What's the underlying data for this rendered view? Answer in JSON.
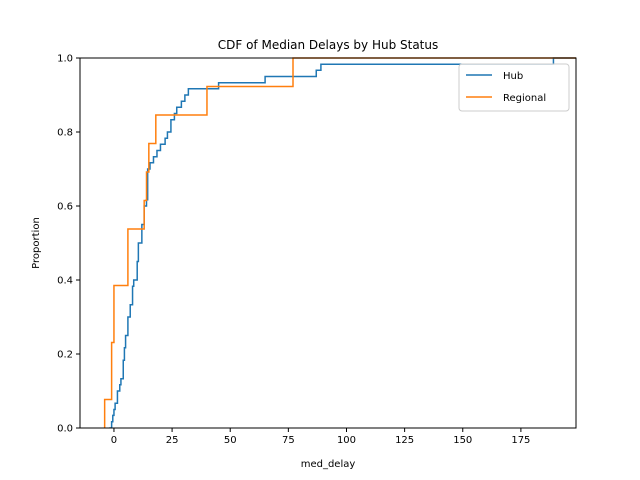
{
  "chart_data": {
    "type": "line",
    "subtype": "ecdf-step",
    "title": "CDF of Median Delays by Hub Status",
    "xlabel": "med_delay",
    "ylabel": "Proportion",
    "xlim": [
      -14.6,
      198.7
    ],
    "ylim": [
      0,
      1
    ],
    "xticks": [
      0,
      25,
      50,
      75,
      100,
      125,
      150,
      175
    ],
    "yticks": [
      0.0,
      0.2,
      0.4,
      0.6,
      0.8,
      1.0
    ],
    "xtick_labels": [
      "0",
      "25",
      "50",
      "75",
      "100",
      "125",
      "150",
      "175"
    ],
    "ytick_labels": [
      "0.0",
      "0.2",
      "0.4",
      "0.6",
      "0.8",
      "1.0"
    ],
    "grid": false,
    "legend_position": "top-right",
    "series": [
      {
        "name": "Hub",
        "color": "#1f77b4",
        "x_start": -2,
        "points": [
          [
            -1,
            0.017
          ],
          [
            -0.5,
            0.034
          ],
          [
            0,
            0.05
          ],
          [
            0.5,
            0.067
          ],
          [
            1.5,
            0.1
          ],
          [
            2.5,
            0.117
          ],
          [
            3,
            0.133
          ],
          [
            4,
            0.183
          ],
          [
            4.5,
            0.217
          ],
          [
            5,
            0.25
          ],
          [
            6,
            0.3
          ],
          [
            7,
            0.333
          ],
          [
            8,
            0.383
          ],
          [
            8.5,
            0.4
          ],
          [
            10,
            0.45
          ],
          [
            10.5,
            0.5
          ],
          [
            12,
            0.55
          ],
          [
            13,
            0.6
          ],
          [
            14,
            0.617
          ],
          [
            14.5,
            0.7
          ],
          [
            15.5,
            0.717
          ],
          [
            17,
            0.733
          ],
          [
            18.5,
            0.75
          ],
          [
            20,
            0.767
          ],
          [
            22,
            0.783
          ],
          [
            23,
            0.8
          ],
          [
            24.5,
            0.833
          ],
          [
            26,
            0.85
          ],
          [
            27,
            0.867
          ],
          [
            29,
            0.883
          ],
          [
            30.5,
            0.9
          ],
          [
            32,
            0.917
          ],
          [
            45,
            0.933
          ],
          [
            65,
            0.95
          ],
          [
            87,
            0.967
          ],
          [
            89,
            0.983
          ],
          [
            189,
            1.0
          ]
        ]
      },
      {
        "name": "Regional",
        "color": "#ff7f0e",
        "x_start": -4,
        "points": [
          [
            -4,
            0.077
          ],
          [
            -1,
            0.231
          ],
          [
            0,
            0.385
          ],
          [
            6,
            0.538
          ],
          [
            13,
            0.615
          ],
          [
            14,
            0.692
          ],
          [
            15,
            0.769
          ],
          [
            18,
            0.846
          ],
          [
            40,
            0.923
          ],
          [
            77,
            1.0
          ]
        ]
      }
    ]
  }
}
